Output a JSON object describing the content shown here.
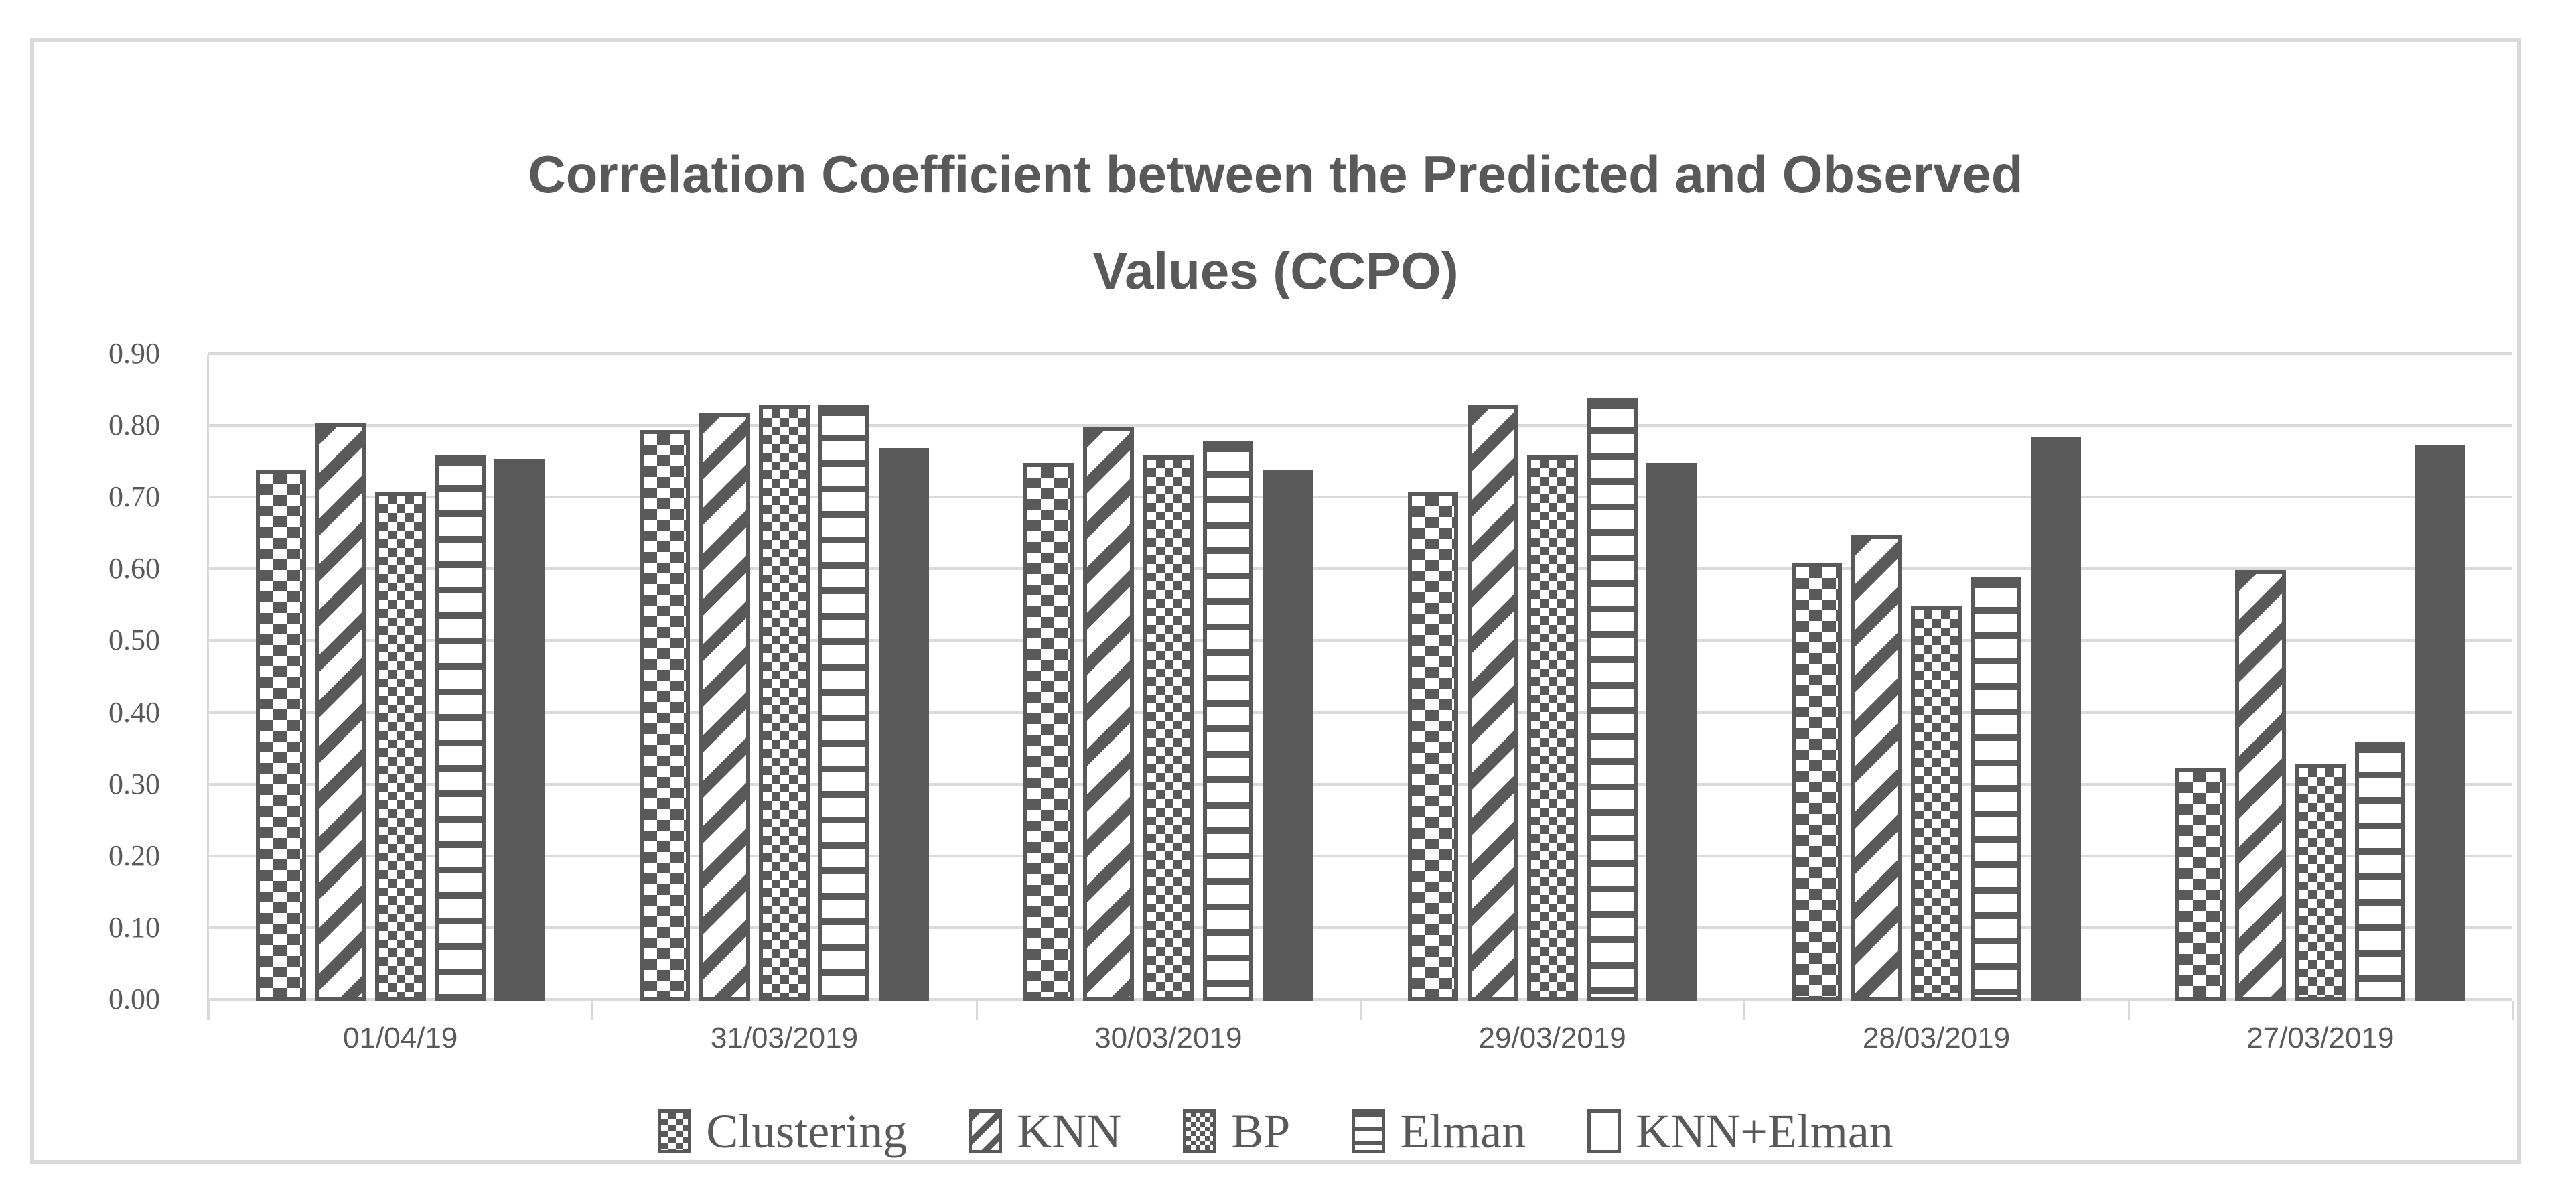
{
  "header": {
    "title": "Correlation Coefficient between the Predicted and Observed Values (CCPO)",
    "title_lines": [
      "Correlation Coefficient between the Predicted and Observed",
      "Values (CCPO)"
    ]
  },
  "colors": {
    "bar": "#595959",
    "text": "#595959",
    "gridline": "#d9d9d9",
    "frame_border": "#d9d9d9"
  },
  "chart_data": {
    "type": "bar",
    "title": "Correlation Coefficient between the Predicted and Observed Values (CCPO)",
    "xlabel": "",
    "ylabel": "",
    "ylim": [
      0,
      0.9
    ],
    "grid": true,
    "legend_position": "bottom",
    "yticks": [
      "0.00",
      "0.10",
      "0.20",
      "0.30",
      "0.40",
      "0.50",
      "0.60",
      "0.70",
      "0.80",
      "0.90"
    ],
    "categories": [
      "01/04/19",
      "31/03/2019",
      "30/03/2019",
      "29/03/2019",
      "28/03/2019",
      "27/03/2019"
    ],
    "series": [
      {
        "name": "Clustering",
        "pattern": "checkerboard",
        "values": [
          0.74,
          0.795,
          0.75,
          0.71,
          0.61,
          0.325
        ]
      },
      {
        "name": "KNN",
        "pattern": "diagonal-stripes",
        "values": [
          0.805,
          0.82,
          0.8,
          0.83,
          0.65,
          0.6
        ]
      },
      {
        "name": "BP",
        "pattern": "diamond-dots",
        "values": [
          0.71,
          0.83,
          0.76,
          0.76,
          0.55,
          0.33
        ]
      },
      {
        "name": "Elman",
        "pattern": "horizontal-stripes",
        "values": [
          0.76,
          0.83,
          0.78,
          0.84,
          0.59,
          0.36
        ]
      },
      {
        "name": "KNN+Elman",
        "pattern": "solid",
        "values": [
          0.755,
          0.77,
          0.74,
          0.75,
          0.785,
          0.775
        ]
      }
    ]
  }
}
